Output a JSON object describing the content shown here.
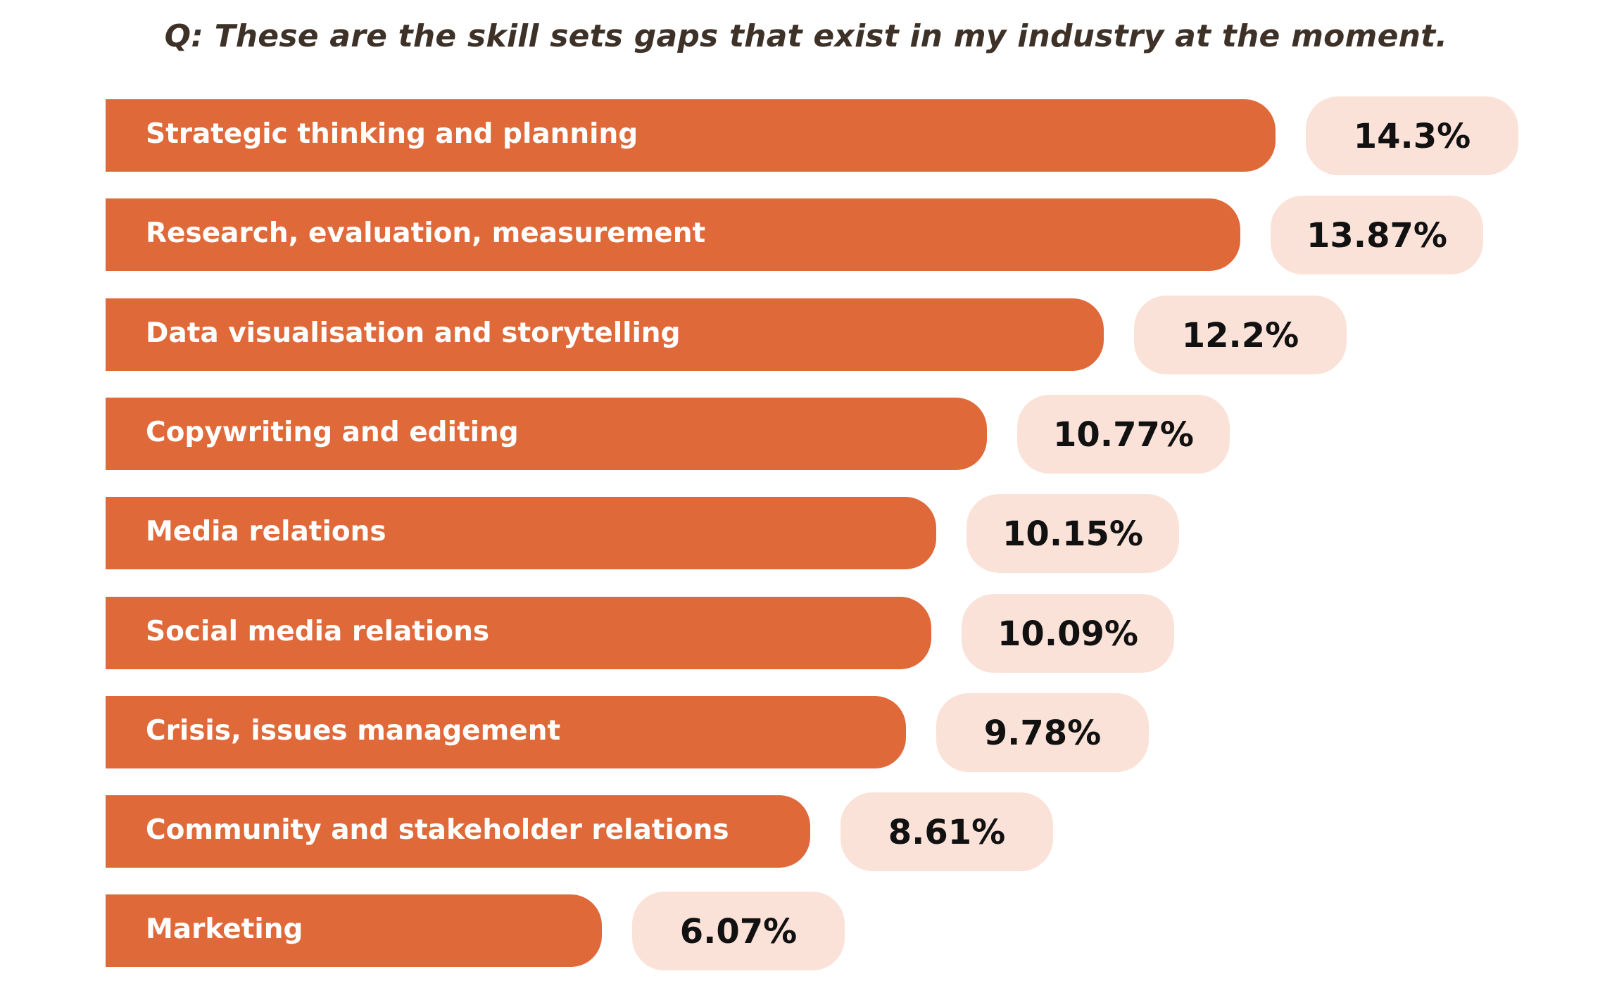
{
  "chart_data": {
    "type": "bar",
    "orientation": "horizontal",
    "title": "Q: These are the skill sets gaps that exist in my industry at the moment.",
    "categories": [
      "Strategic thinking and planning",
      "Research, evaluation, measurement",
      "Data visualisation and storytelling",
      "Copywriting and editing",
      "Media relations",
      "Social media relations",
      "Crisis, issues management",
      "Community and stakeholder relations",
      "Marketing"
    ],
    "values": [
      14.3,
      13.87,
      12.2,
      10.77,
      10.15,
      10.09,
      9.78,
      8.61,
      6.07
    ],
    "value_labels": [
      "14.3%",
      "13.87%",
      "12.2%",
      "10.77%",
      "10.15%",
      "10.09%",
      "9.78%",
      "8.61%",
      "6.07%"
    ],
    "unit": "%",
    "legend": "none",
    "grid": false,
    "colors": {
      "bar": "#e0693a",
      "value_pill": "#fbe2d9",
      "bar_label_text": "#ffffff",
      "value_text": "#111111",
      "title_text": "#3d3128"
    }
  }
}
